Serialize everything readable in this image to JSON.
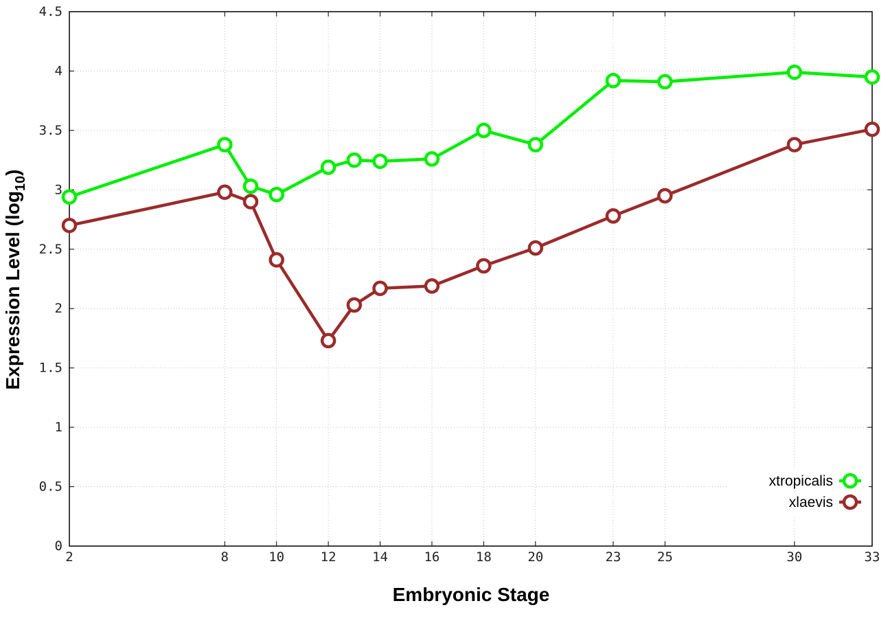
{
  "chart_data": {
    "type": "line",
    "xlabel": "Embryonic Stage",
    "ylabel_main": "Expression Level (log",
    "ylabel_sub": "10",
    "ylabel_close": ")",
    "xlim": [
      2,
      33
    ],
    "ylim": [
      0,
      4.5
    ],
    "grid": true,
    "legend_position": "bottom-right",
    "x_ticks": [
      2,
      8,
      10,
      12,
      14,
      16,
      18,
      20,
      23,
      25,
      30,
      33
    ],
    "y_ticks": [
      "0",
      "0.5",
      "1",
      "1.5",
      "2",
      "2.5",
      "3",
      "3.5",
      "4",
      "4.5"
    ],
    "x": [
      2,
      8,
      9,
      10,
      12,
      13,
      14,
      16,
      18,
      20,
      23,
      25,
      30,
      33
    ],
    "series": [
      {
        "name": "xtropicalis",
        "color": "#00ee00",
        "values": [
          2.94,
          3.38,
          3.03,
          2.96,
          3.19,
          3.25,
          3.24,
          3.26,
          3.5,
          3.38,
          3.92,
          3.91,
          3.99,
          3.95
        ]
      },
      {
        "name": "xlaevis",
        "color": "#9b2b2b",
        "values": [
          2.7,
          2.98,
          2.9,
          2.41,
          1.73,
          2.03,
          2.17,
          2.19,
          2.36,
          2.51,
          2.78,
          2.95,
          3.38,
          3.51
        ]
      }
    ]
  }
}
